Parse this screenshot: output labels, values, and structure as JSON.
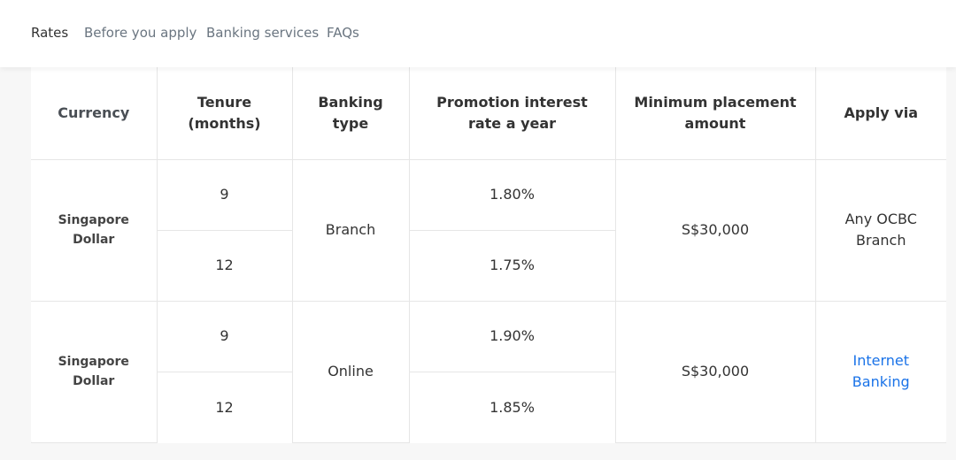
{
  "nav": {
    "tabs": [
      {
        "label": "Rates",
        "active": true
      },
      {
        "label": "Before you apply",
        "active": false
      },
      {
        "label": "Banking services",
        "active": false
      },
      {
        "label": "FAQs",
        "active": false
      }
    ]
  },
  "table": {
    "headers": {
      "currency": "Currency",
      "tenure": "Tenure (months)",
      "banking_type": "Banking type",
      "rate": "Promotion interest rate a year",
      "min_amount": "Minimum placement amount",
      "apply_via": "Apply via"
    },
    "groups": [
      {
        "currency": "Singapore Dollar",
        "banking_type": "Branch",
        "min_amount": "S$30,000",
        "apply_via": "Any OCBC Branch",
        "apply_is_link": false,
        "rows": [
          {
            "tenure": "9",
            "rate": "1.80%"
          },
          {
            "tenure": "12",
            "rate": "1.75%"
          }
        ]
      },
      {
        "currency": "Singapore Dollar",
        "banking_type": "Online",
        "min_amount": "S$30,000",
        "apply_via": "Internet Banking",
        "apply_is_link": true,
        "rows": [
          {
            "tenure": "9",
            "rate": "1.90%"
          },
          {
            "tenure": "12",
            "rate": "1.85%"
          }
        ]
      }
    ]
  },
  "colors": {
    "link": "#1a73e8",
    "text": "#333333",
    "nav_inactive": "#6a7580",
    "border": "#e6e6e6"
  }
}
